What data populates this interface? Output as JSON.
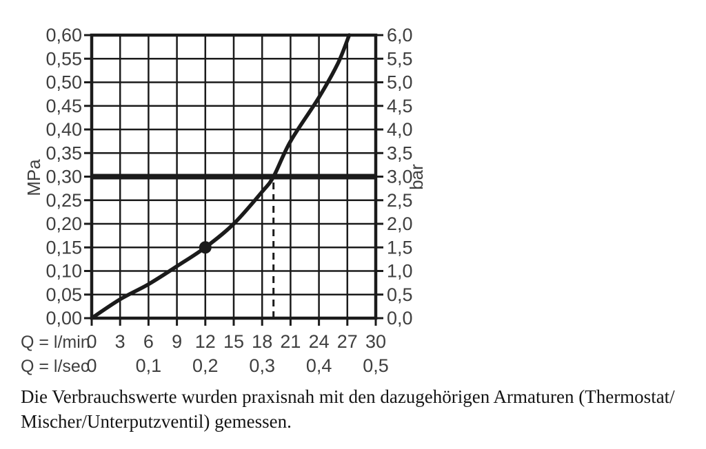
{
  "figure": {
    "caption_line1": "Die Verbrauchswerte wurden praxisnah mit den dazugehörigen Armaturen (Thermostat/",
    "caption_line2": "Mischer/Unterputzventil) gemessen."
  },
  "chart_data": {
    "type": "line",
    "title": "",
    "x_axis": {
      "row1_label": "Q = l/min",
      "row1_ticks": [
        0,
        3,
        6,
        9,
        12,
        15,
        18,
        21,
        24,
        27,
        30
      ],
      "row2_label": "Q = l/sec",
      "row2_ticks": [
        {
          "label": "0",
          "q": 0
        },
        {
          "label": "0,1",
          "q": 6
        },
        {
          "label": "0,2",
          "q": 12
        },
        {
          "label": "0,3",
          "q": 18
        },
        {
          "label": "0,4",
          "q": 24
        },
        {
          "label": "0,5",
          "q": 30
        }
      ],
      "min": 0,
      "max": 30,
      "grid_step": 3
    },
    "y_axis_left": {
      "label": "MPa",
      "min": 0,
      "max": 0.6,
      "grid_step": 0.05,
      "tick_labels": [
        "0,60",
        "0,55",
        "0,50",
        "0,45",
        "0,40",
        "0,35",
        "0,30",
        "0,25",
        "0,20",
        "0,15",
        "0,10",
        "0,05",
        "0,00"
      ]
    },
    "y_axis_right": {
      "label": "bar",
      "min": 0,
      "max": 6,
      "grid_step": 0.5,
      "tick_labels": [
        "6,0",
        "5,5",
        "5,0",
        "4,5",
        "4,0",
        "3,5",
        "3,0",
        "2,5",
        "2,0",
        "1,5",
        "1,0",
        "0,5",
        "0,0"
      ]
    },
    "series": [
      {
        "name": "pressure-flow-curve",
        "points": [
          [
            0,
            0
          ],
          [
            3,
            0.04
          ],
          [
            6,
            0.072
          ],
          [
            9,
            0.11
          ],
          [
            12,
            0.15
          ],
          [
            15,
            0.2
          ],
          [
            18,
            0.268
          ],
          [
            19.2,
            0.3
          ],
          [
            21,
            0.375
          ],
          [
            24,
            0.468
          ],
          [
            26,
            0.54
          ],
          [
            27.2,
            0.6
          ]
        ]
      }
    ],
    "marker_point": {
      "q_lmin": 12,
      "mpa": 0.15
    },
    "reference_line_mpa": 0.3,
    "dashed_guide": {
      "q_lmin": 19.2,
      "from_mpa": 0,
      "to_mpa": 0.3
    },
    "grid": true,
    "legend": "none",
    "colors": {
      "line": "#1b1b1b",
      "label": "#3f3f3f",
      "background": "#ffffff"
    }
  }
}
